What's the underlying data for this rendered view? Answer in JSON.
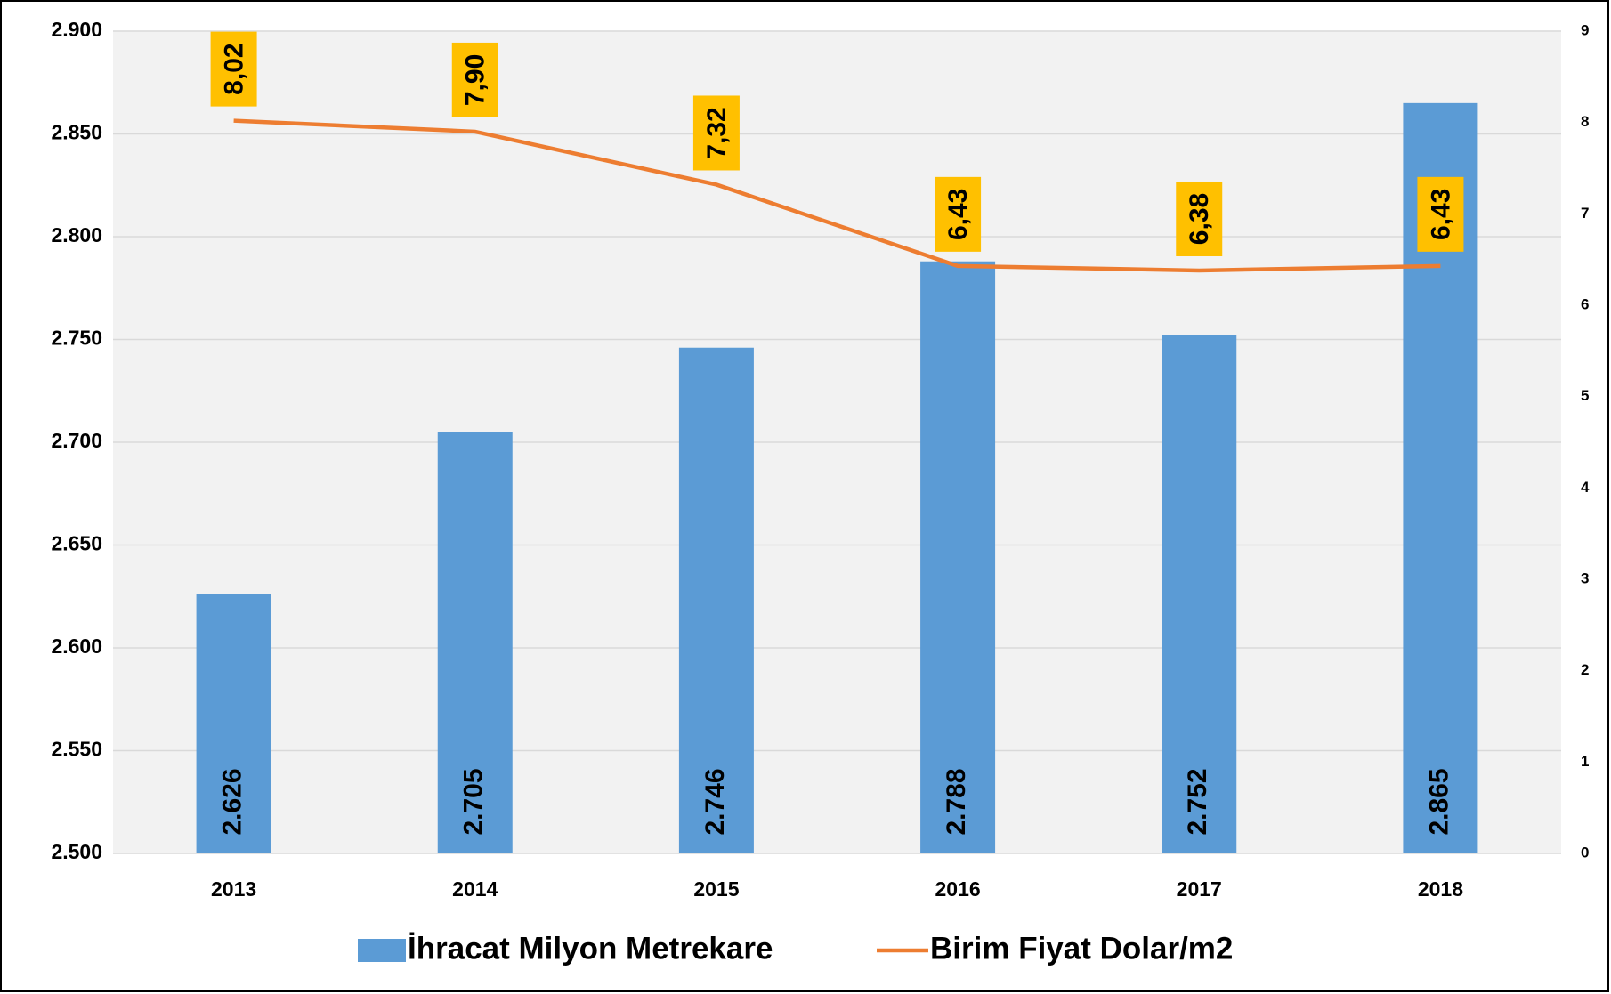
{
  "chart_data": {
    "type": "combo",
    "categories": [
      "2013",
      "2014",
      "2015",
      "2016",
      "2017",
      "2018"
    ],
    "series": [
      {
        "name": "İhracat Milyon Metrekare",
        "type": "bar",
        "color": "#5b9bd5",
        "values": [
          2626,
          2705,
          2746,
          2788,
          2752,
          2865
        ],
        "value_labels": [
          "2.626",
          "2.705",
          "2.746",
          "2.788",
          "2.752",
          "2.865"
        ]
      },
      {
        "name": "Birim Fiyat Dolar/m2",
        "type": "line",
        "axis": "y2",
        "color": "#ed7d31",
        "label_color": "#ffc000",
        "values": [
          8.02,
          7.9,
          7.32,
          6.43,
          6.38,
          6.43
        ],
        "value_labels": [
          "8,02",
          "7,90",
          "7,32",
          "6,43",
          "6,38",
          "6,43"
        ]
      }
    ],
    "ylim": [
      2500,
      2900
    ],
    "yticks": [
      {
        "value": 2500,
        "label": "2.500"
      },
      {
        "value": 2550,
        "label": "2.550"
      },
      {
        "value": 2600,
        "label": "2.600"
      },
      {
        "value": 2650,
        "label": "2.650"
      },
      {
        "value": 2700,
        "label": "2.700"
      },
      {
        "value": 2750,
        "label": "2.750"
      },
      {
        "value": 2800,
        "label": "2.800"
      },
      {
        "value": 2850,
        "label": "2.850"
      },
      {
        "value": 2900,
        "label": "2.900"
      }
    ],
    "y2lim": [
      0,
      9
    ],
    "y2ticks": [
      0,
      1,
      2,
      3,
      4,
      5,
      6,
      7,
      8,
      9
    ],
    "grid": true,
    "legend": "bottom"
  }
}
